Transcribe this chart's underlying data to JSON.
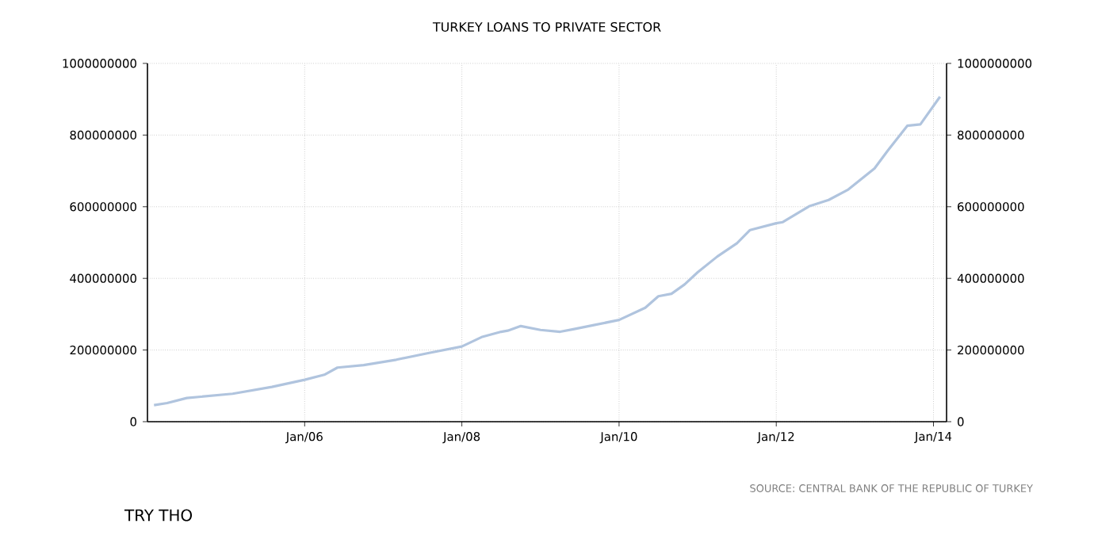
{
  "chart_data": {
    "type": "line",
    "title": "TURKEY LOANS TO PRIVATE SECTOR",
    "x": [
      "2004-02",
      "2004-04",
      "2004-07",
      "2005-02",
      "2005-08",
      "2006-01",
      "2006-04",
      "2006-06",
      "2006-10",
      "2007-03",
      "2007-08",
      "2008-01",
      "2008-04",
      "2008-07",
      "2008-08",
      "2008-10",
      "2009-01",
      "2009-04",
      "2009-06",
      "2009-09",
      "2010-01",
      "2010-05",
      "2010-07",
      "2010-09",
      "2010-11",
      "2011-01",
      "2011-04",
      "2011-07",
      "2011-09",
      "2012-01",
      "2012-02",
      "2012-06",
      "2012-09",
      "2012-12",
      "2013-04",
      "2013-06",
      "2013-09",
      "2013-11",
      "2014-02"
    ],
    "series": [
      {
        "color": "#b0c4de",
        "values": [
          46000000,
          52000000,
          66000000,
          78000000,
          97000000,
          117000000,
          131000000,
          151000000,
          158000000,
          173000000,
          192000000,
          210000000,
          236000000,
          251000000,
          254000000,
          267000000,
          256000000,
          251000000,
          258000000,
          269000000,
          284000000,
          318000000,
          350000000,
          357000000,
          383000000,
          417000000,
          461000000,
          498000000,
          535000000,
          554000000,
          557000000,
          601000000,
          619000000,
          648000000,
          707000000,
          756000000,
          826000000,
          830000000,
          907000000
        ]
      }
    ],
    "xlim": [
      "2004-01",
      "2014-03"
    ],
    "xticks": [
      {
        "value": "2006-01",
        "label": "Jan/06"
      },
      {
        "value": "2008-01",
        "label": "Jan/08"
      },
      {
        "value": "2010-01",
        "label": "Jan/10"
      },
      {
        "value": "2012-01",
        "label": "Jan/12"
      },
      {
        "value": "2014-01",
        "label": "Jan/14"
      }
    ],
    "ylim": [
      0,
      1000000000
    ],
    "yticks": [
      0,
      200000000,
      400000000,
      600000000,
      800000000,
      1000000000
    ],
    "y2lim": [
      0,
      1000000000
    ],
    "y2ticks": [
      0,
      200000000,
      400000000,
      600000000,
      800000000,
      1000000000
    ],
    "grid": true,
    "line_style": "solid",
    "annotations": [
      "SOURCE: CENTRAL BANK OF THE REPUBLIC OF TURKEY",
      "TRY THO"
    ]
  }
}
